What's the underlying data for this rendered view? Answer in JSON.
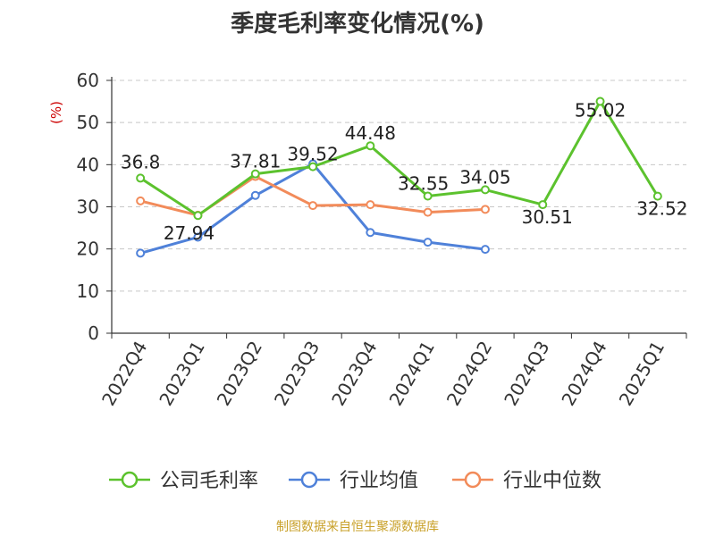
{
  "chart_data": {
    "type": "line",
    "title": "季度毛利率变化情况(%)",
    "ylabel": "(%)",
    "xlabel": "",
    "categories": [
      "2022Q4",
      "2023Q1",
      "2023Q2",
      "2023Q3",
      "2023Q4",
      "2024Q1",
      "2024Q2",
      "2024Q3",
      "2024Q4",
      "2025Q1"
    ],
    "ylim": [
      0,
      60
    ],
    "yticks": [
      0,
      10,
      20,
      30,
      40,
      50,
      60
    ],
    "grid": true,
    "legend_position": "bottom",
    "series": [
      {
        "name": "公司毛利率",
        "color": "#5cc22e",
        "values": [
          36.8,
          27.94,
          37.81,
          39.52,
          44.48,
          32.55,
          34.05,
          30.51,
          55.02,
          32.52
        ],
        "labels": [
          "36.8",
          "27.94",
          "37.81",
          "39.52",
          "44.48",
          "32.55",
          "34.05",
          "30.51",
          "55.02",
          "32.52"
        ]
      },
      {
        "name": "行业均值",
        "color": "#4f81d9",
        "values": [
          19.0,
          22.8,
          32.7,
          40.2,
          23.9,
          21.6,
          19.9,
          null,
          null,
          null
        ]
      },
      {
        "name": "行业中位数",
        "color": "#f28b5a",
        "values": [
          31.4,
          28.0,
          37.2,
          30.3,
          30.5,
          28.7,
          29.4,
          null,
          null,
          null
        ]
      }
    ]
  },
  "footer": {
    "source": "制图数据来自恒生聚源数据库"
  }
}
